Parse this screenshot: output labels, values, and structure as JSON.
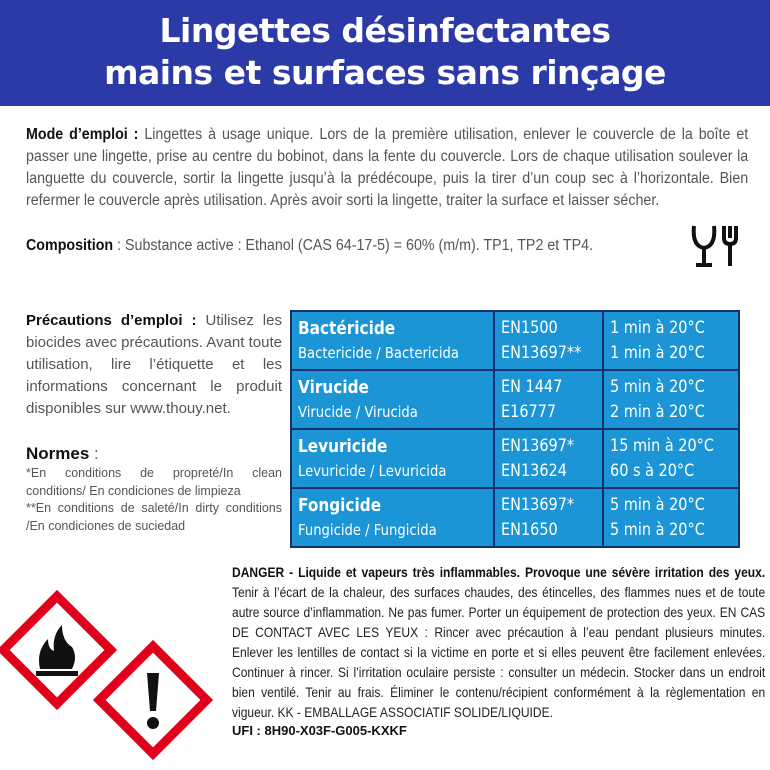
{
  "header": {
    "line1": "Lingettes désinfectantes",
    "line2": "mains et surfaces  sans rinçage"
  },
  "mode": {
    "label": "Mode d’emploi  :",
    "text": " Lingettes à usage unique. Lors de la première utilisation, enlever le couvercle de la boîte et passer une lingette, prise au centre du bobinot, dans la fente du couvercle. Lors de chaque utilisation soulever la languette du couvercle, sortir la lingette jusqu’à la prédécoupe, puis la tirer d’un coup sec à l’horizontale. Bien refermer le couvercle après utilisation. Après avoir sorti la lingette, traiter la surface et laisser sécher."
  },
  "composition": {
    "label": "Composition",
    "text": " : Substance active : Ethanol (CAS 64-17-5) = 60% (m/m).  TP1, TP2 et TP4.",
    "icon": "food-contact-glass-fork-icon"
  },
  "precautions": {
    "label": "Précautions d’emploi :",
    "text": " Utilisez les biocides avec précautions. Avant toute utilisation, lire l’étiquette et les informations concernant le produit disponibles sur www.thouy.net."
  },
  "normes": {
    "label": "Normes",
    "colon": " :",
    "note1": "*En conditions de propreté/In clean conditions/ En condiciones de limpieza",
    "note2": "**En conditions de saleté/In dirty conditions /En condiciones de suciedad"
  },
  "table": {
    "color": "#1b95d6",
    "rows": [
      {
        "title": "Bactéricide",
        "sub": "Bactericide / Bactericida",
        "norms": [
          "EN1500",
          "EN13697**"
        ],
        "times": [
          "1 min à 20°C",
          "1 min à 20°C"
        ]
      },
      {
        "title": "Virucide",
        "sub": "Virucide / Virucida",
        "norms": [
          "EN 1447",
          "E16777"
        ],
        "times": [
          "5 min à 20°C",
          "2 min à 20°C"
        ]
      },
      {
        "title": "Levuricide",
        "sub": "Levuricide / Levuricida",
        "norms": [
          "EN13697*",
          "EN13624"
        ],
        "times": [
          "15 min à 20°C",
          "60 s à 20°C"
        ]
      },
      {
        "title": "Fongicide",
        "sub": "Fungicide / Fungicida",
        "norms": [
          "EN13697*",
          "EN1650"
        ],
        "times": [
          "5 min à 20°C",
          "5 min à 20°C"
        ]
      }
    ]
  },
  "danger": {
    "bold": "DANGER - Liquide et vapeurs très inflammables. Provoque une sévère irritation des yeux.",
    "text": " Tenir à l’écart de la chaleur, des surfaces chaudes, des étincelles, des flammes nues et de toute autre source d’inflammation. Ne pas fumer. Porter un équipement de protection des yeux. EN CAS DE CONTACT AVEC LES YEUX : Rincer avec précaution à l’eau pendant plusieurs minutes. Enlever les lentilles de contact si la victime en porte et si elles peuvent être facilement enlevées. Continuer à rincer. Si l’irritation oculaire persiste : consulter un médecin.  Stocker dans un endroit bien ventilé. Tenir au frais. Éliminer le contenu/récipient conformément à la règlementation en vigueur. KK - EMBALLAGE ASSOCIATIF SOLIDE/LIQUIDE.",
    "ufi": "UFI : 8H90-X03F-G005-KXKF"
  },
  "pictograms": [
    "ghs-flame-icon",
    "ghs-exclamation-icon"
  ]
}
